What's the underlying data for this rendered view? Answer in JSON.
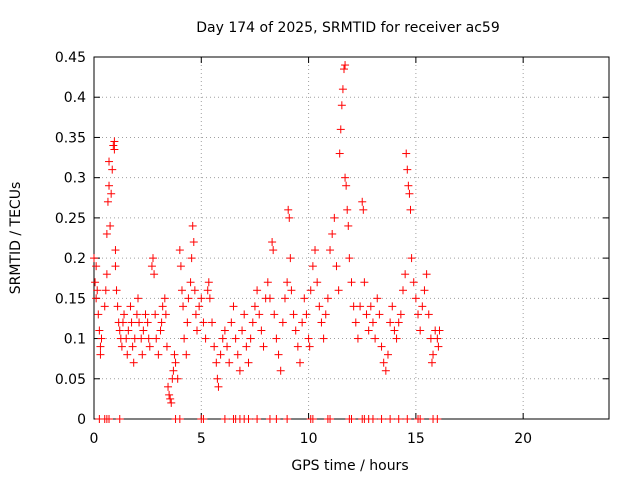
{
  "chart_data": {
    "type": "scatter",
    "title": "Day 174 of 2025, SRMTID for receiver ac59",
    "xlabel": "GPS time / hours",
    "ylabel": "SRMTID / TECUs",
    "xlim": [
      0,
      24
    ],
    "ylim": [
      0,
      0.45
    ],
    "x_ticks": [
      0,
      5,
      10,
      15,
      20
    ],
    "y_ticks": [
      0,
      0.05,
      0.1,
      0.15,
      0.2,
      0.25,
      0.3,
      0.35,
      0.4,
      0.45
    ],
    "x_tick_labels": [
      "0",
      "5",
      "10",
      "15",
      "20"
    ],
    "y_tick_labels": [
      "0",
      "0.05",
      "0.1",
      "0.15",
      "0.2",
      "0.25",
      "0.3",
      "0.35",
      "0.4",
      "0.45"
    ],
    "grid": true,
    "marker": "+",
    "color": "#ff0000",
    "series": [
      {
        "name": "SRMTID",
        "points": [
          [
            0.0,
            0.2
          ],
          [
            0.05,
            0.17
          ],
          [
            0.1,
            0.15
          ],
          [
            0.1,
            0.19
          ],
          [
            0.15,
            0.16
          ],
          [
            0.2,
            0.13
          ],
          [
            0.25,
            0.11
          ],
          [
            0.3,
            0.09
          ],
          [
            0.3,
            0.08
          ],
          [
            0.35,
            0.1
          ],
          [
            0.5,
            0.14
          ],
          [
            0.55,
            0.16
          ],
          [
            0.6,
            0.18
          ],
          [
            0.6,
            0.23
          ],
          [
            0.65,
            0.27
          ],
          [
            0.7,
            0.29
          ],
          [
            0.7,
            0.32
          ],
          [
            0.75,
            0.24
          ],
          [
            0.8,
            0.28
          ],
          [
            0.85,
            0.31
          ],
          [
            0.9,
            0.34
          ],
          [
            0.95,
            0.345
          ],
          [
            0.95,
            0.335
          ],
          [
            1.0,
            0.21
          ],
          [
            1.0,
            0.19
          ],
          [
            1.05,
            0.16
          ],
          [
            1.1,
            0.14
          ],
          [
            1.15,
            0.12
          ],
          [
            1.2,
            0.11
          ],
          [
            1.25,
            0.1
          ],
          [
            1.3,
            0.09
          ],
          [
            1.35,
            0.12
          ],
          [
            1.4,
            0.13
          ],
          [
            1.5,
            0.1
          ],
          [
            1.55,
            0.08
          ],
          [
            1.6,
            0.11
          ],
          [
            1.7,
            0.14
          ],
          [
            1.75,
            0.12
          ],
          [
            1.8,
            0.09
          ],
          [
            1.85,
            0.07
          ],
          [
            1.9,
            0.1
          ],
          [
            2.0,
            0.13
          ],
          [
            2.05,
            0.15
          ],
          [
            2.1,
            0.12
          ],
          [
            2.2,
            0.1
          ],
          [
            2.25,
            0.08
          ],
          [
            2.3,
            0.11
          ],
          [
            2.4,
            0.13
          ],
          [
            2.5,
            0.12
          ],
          [
            2.55,
            0.1
          ],
          [
            2.6,
            0.09
          ],
          [
            2.7,
            0.19
          ],
          [
            2.75,
            0.2
          ],
          [
            2.8,
            0.18
          ],
          [
            2.85,
            0.13
          ],
          [
            2.9,
            0.1
          ],
          [
            3.0,
            0.08
          ],
          [
            3.1,
            0.11
          ],
          [
            3.15,
            0.12
          ],
          [
            3.2,
            0.14
          ],
          [
            3.3,
            0.15
          ],
          [
            3.35,
            0.13
          ],
          [
            3.4,
            0.09
          ],
          [
            3.45,
            0.04
          ],
          [
            3.5,
            0.03
          ],
          [
            3.55,
            0.025
          ],
          [
            3.6,
            0.02
          ],
          [
            3.65,
            0.05
          ],
          [
            3.7,
            0.06
          ],
          [
            3.75,
            0.08
          ],
          [
            3.8,
            0.07
          ],
          [
            3.9,
            0.05
          ],
          [
            4.0,
            0.21
          ],
          [
            4.05,
            0.19
          ],
          [
            4.1,
            0.16
          ],
          [
            4.15,
            0.14
          ],
          [
            4.2,
            0.1
          ],
          [
            4.3,
            0.08
          ],
          [
            4.35,
            0.12
          ],
          [
            4.4,
            0.15
          ],
          [
            4.5,
            0.17
          ],
          [
            4.55,
            0.2
          ],
          [
            4.6,
            0.24
          ],
          [
            4.65,
            0.22
          ],
          [
            4.7,
            0.16
          ],
          [
            4.75,
            0.13
          ],
          [
            4.8,
            0.11
          ],
          [
            4.9,
            0.14
          ],
          [
            5.0,
            0.15
          ],
          [
            5.1,
            0.12
          ],
          [
            5.2,
            0.1
          ],
          [
            5.3,
            0.16
          ],
          [
            5.35,
            0.17
          ],
          [
            5.4,
            0.15
          ],
          [
            5.5,
            0.12
          ],
          [
            5.6,
            0.09
          ],
          [
            5.7,
            0.07
          ],
          [
            5.75,
            0.05
          ],
          [
            5.8,
            0.04
          ],
          [
            5.9,
            0.08
          ],
          [
            6.0,
            0.1
          ],
          [
            6.1,
            0.11
          ],
          [
            6.2,
            0.09
          ],
          [
            6.3,
            0.07
          ],
          [
            6.4,
            0.12
          ],
          [
            6.5,
            0.14
          ],
          [
            6.6,
            0.1
          ],
          [
            6.7,
            0.08
          ],
          [
            6.8,
            0.06
          ],
          [
            6.9,
            0.11
          ],
          [
            7.0,
            0.13
          ],
          [
            7.1,
            0.09
          ],
          [
            7.2,
            0.07
          ],
          [
            7.3,
            0.1
          ],
          [
            7.4,
            0.12
          ],
          [
            7.5,
            0.14
          ],
          [
            7.6,
            0.16
          ],
          [
            7.7,
            0.13
          ],
          [
            7.8,
            0.11
          ],
          [
            7.9,
            0.09
          ],
          [
            8.0,
            0.15
          ],
          [
            8.1,
            0.17
          ],
          [
            8.2,
            0.15
          ],
          [
            8.3,
            0.22
          ],
          [
            8.35,
            0.21
          ],
          [
            8.4,
            0.13
          ],
          [
            8.5,
            0.1
          ],
          [
            8.6,
            0.08
          ],
          [
            8.7,
            0.06
          ],
          [
            8.8,
            0.12
          ],
          [
            8.9,
            0.15
          ],
          [
            9.0,
            0.17
          ],
          [
            9.05,
            0.26
          ],
          [
            9.1,
            0.25
          ],
          [
            9.15,
            0.2
          ],
          [
            9.2,
            0.16
          ],
          [
            9.3,
            0.13
          ],
          [
            9.4,
            0.11
          ],
          [
            9.5,
            0.09
          ],
          [
            9.6,
            0.07
          ],
          [
            9.7,
            0.12
          ],
          [
            9.8,
            0.15
          ],
          [
            9.9,
            0.13
          ],
          [
            10.0,
            0.1
          ],
          [
            10.05,
            0.09
          ],
          [
            10.1,
            0.16
          ],
          [
            10.2,
            0.19
          ],
          [
            10.3,
            0.21
          ],
          [
            10.4,
            0.17
          ],
          [
            10.5,
            0.14
          ],
          [
            10.6,
            0.12
          ],
          [
            10.7,
            0.1
          ],
          [
            10.8,
            0.13
          ],
          [
            10.9,
            0.15
          ],
          [
            11.0,
            0.21
          ],
          [
            11.1,
            0.23
          ],
          [
            11.2,
            0.25
          ],
          [
            11.3,
            0.19
          ],
          [
            11.4,
            0.16
          ],
          [
            11.45,
            0.33
          ],
          [
            11.5,
            0.36
          ],
          [
            11.55,
            0.39
          ],
          [
            11.6,
            0.41
          ],
          [
            11.65,
            0.435
          ],
          [
            11.7,
            0.44
          ],
          [
            11.7,
            0.3
          ],
          [
            11.75,
            0.29
          ],
          [
            11.8,
            0.26
          ],
          [
            11.85,
            0.24
          ],
          [
            11.9,
            0.2
          ],
          [
            12.0,
            0.17
          ],
          [
            12.1,
            0.14
          ],
          [
            12.2,
            0.12
          ],
          [
            12.3,
            0.1
          ],
          [
            12.4,
            0.14
          ],
          [
            12.5,
            0.27
          ],
          [
            12.55,
            0.26
          ],
          [
            12.6,
            0.17
          ],
          [
            12.7,
            0.13
          ],
          [
            12.8,
            0.11
          ],
          [
            12.9,
            0.14
          ],
          [
            13.0,
            0.12
          ],
          [
            13.1,
            0.1
          ],
          [
            13.2,
            0.15
          ],
          [
            13.3,
            0.13
          ],
          [
            13.4,
            0.09
          ],
          [
            13.5,
            0.07
          ],
          [
            13.6,
            0.06
          ],
          [
            13.7,
            0.08
          ],
          [
            13.8,
            0.12
          ],
          [
            13.9,
            0.14
          ],
          [
            14.0,
            0.11
          ],
          [
            14.1,
            0.1
          ],
          [
            14.2,
            0.12
          ],
          [
            14.3,
            0.13
          ],
          [
            14.4,
            0.16
          ],
          [
            14.5,
            0.18
          ],
          [
            14.55,
            0.33
          ],
          [
            14.6,
            0.31
          ],
          [
            14.65,
            0.29
          ],
          [
            14.7,
            0.28
          ],
          [
            14.75,
            0.26
          ],
          [
            14.8,
            0.2
          ],
          [
            14.9,
            0.17
          ],
          [
            15.0,
            0.15
          ],
          [
            15.1,
            0.13
          ],
          [
            15.2,
            0.11
          ],
          [
            15.3,
            0.14
          ],
          [
            15.4,
            0.16
          ],
          [
            15.5,
            0.18
          ],
          [
            15.6,
            0.13
          ],
          [
            15.7,
            0.1
          ],
          [
            15.75,
            0.07
          ],
          [
            15.8,
            0.08
          ],
          [
            15.9,
            0.11
          ],
          [
            16.0,
            0.1
          ],
          [
            16.05,
            0.09
          ],
          [
            16.1,
            0.11
          ]
        ]
      }
    ],
    "zero_markers_x": [
      0.25,
      0.5,
      0.6,
      0.7,
      1.2,
      3.8,
      4.0,
      5.0,
      5.1,
      6.1,
      6.5,
      6.6,
      6.8,
      7.0,
      7.2,
      7.6,
      8.2,
      8.5,
      9.0,
      10.1,
      10.2,
      10.9,
      11.0,
      11.9,
      12.0,
      12.5,
      12.6,
      12.8,
      13.0,
      13.4,
      13.8,
      14.2,
      14.6,
      15.1,
      15.2,
      15.8,
      16.0
    ]
  }
}
